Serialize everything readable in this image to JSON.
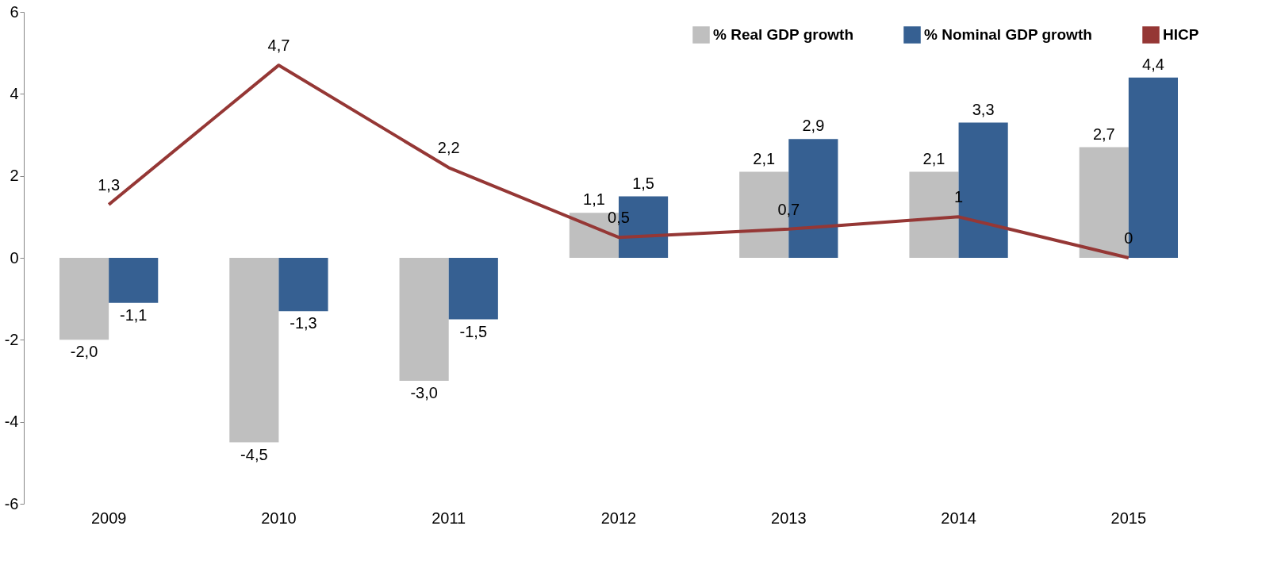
{
  "chart_data": {
    "type": "bar",
    "categories": [
      "2009",
      "2010",
      "2011",
      "2012",
      "2013",
      "2014",
      "2015"
    ],
    "series": [
      {
        "name": "% Real GDP growth",
        "color": "#bfbfbf",
        "values": [
          -2.0,
          -4.5,
          -3.0,
          1.1,
          2.1,
          2.1,
          2.7
        ],
        "value_labels": [
          "-2,0",
          "-4,5",
          "-3,0",
          "1,1",
          "2,1",
          "2,1",
          "2,7"
        ]
      },
      {
        "name": "% Nominal GDP growth",
        "color": "#366092",
        "values": [
          -1.1,
          -1.3,
          -1.5,
          1.5,
          2.9,
          3.3,
          4.4
        ],
        "value_labels": [
          "-1,1",
          "-1,3",
          "-1,5",
          "1,5",
          "2,9",
          "3,3",
          "4,4"
        ]
      },
      {
        "name": "HICP",
        "type": "line",
        "color": "#953735",
        "values": [
          1.3,
          4.7,
          2.2,
          0.5,
          0.7,
          1,
          0
        ],
        "value_labels": [
          "1,3",
          "4,7",
          "2,2",
          "0,5",
          "0,7",
          "1",
          "0"
        ]
      }
    ],
    "ylim": [
      -6,
      6
    ],
    "yticks": [
      -6,
      -4,
      -2,
      0,
      2,
      4,
      6
    ],
    "grid": false,
    "legend": "top right",
    "marker": "none",
    "line_style": "solid"
  }
}
